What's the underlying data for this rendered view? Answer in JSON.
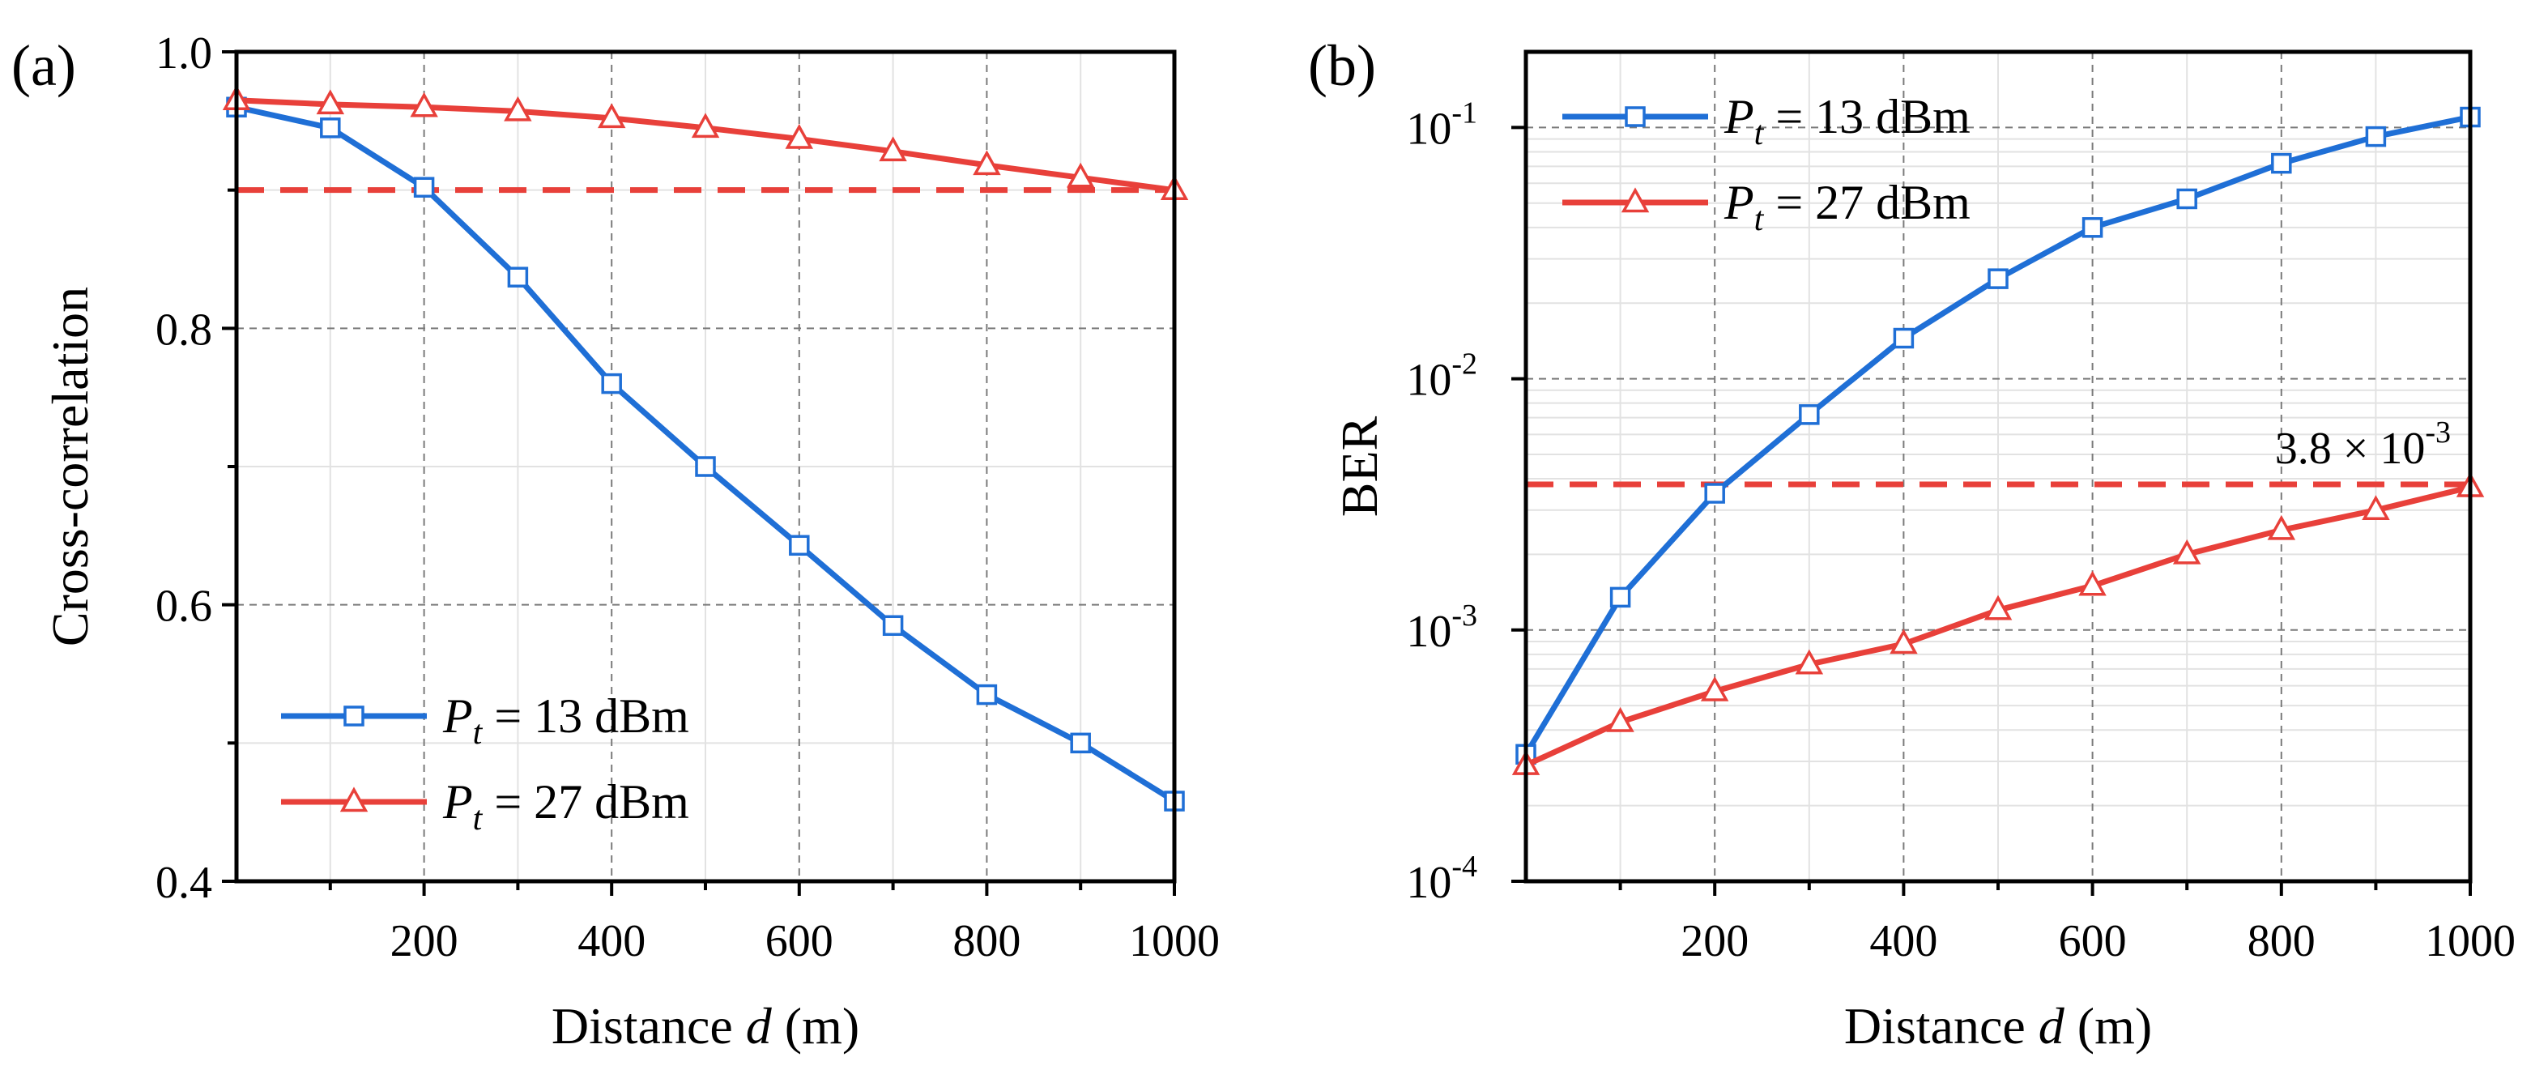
{
  "chart_data": [
    {
      "type": "line",
      "panel_label": "(a)",
      "xlabel_prefix": "Distance ",
      "xlabel_var": "d",
      "xlabel_suffix": " (m)",
      "ylabel": "Cross-correlation",
      "xlim": [
        0,
        1000
      ],
      "ylim": [
        0.4,
        1.0
      ],
      "xticks": [
        200,
        400,
        600,
        800,
        1000
      ],
      "xtick_labels": [
        "200",
        "400",
        "600",
        "800",
        "1000"
      ],
      "yticks": [
        0.4,
        0.6,
        0.8,
        1.0
      ],
      "ytick_labels": [
        "0.4",
        "0.6",
        "0.8",
        "1.0"
      ],
      "yscale": "linear",
      "grid": true,
      "legend_position": "bottom-left",
      "x": [
        0,
        100,
        200,
        300,
        400,
        500,
        600,
        700,
        800,
        900,
        1000
      ],
      "series": [
        {
          "name_var": "P",
          "name_sub": "t",
          "name_rest": " = 13 dBm",
          "color": "#1f6fd6",
          "marker": "square",
          "values": [
            0.96,
            0.945,
            0.902,
            0.837,
            0.76,
            0.7,
            0.643,
            0.585,
            0.535,
            0.5,
            0.458
          ]
        },
        {
          "name_var": "P",
          "name_sub": "t",
          "name_rest": " = 27 dBm",
          "color": "#e8403a",
          "marker": "triangle",
          "values": [
            0.965,
            0.962,
            0.96,
            0.957,
            0.952,
            0.945,
            0.937,
            0.928,
            0.918,
            0.909,
            0.9
          ]
        }
      ],
      "reference_line": {
        "y": 0.9,
        "color": "#e8403a",
        "style": "dashed"
      }
    },
    {
      "type": "line",
      "panel_label": "(b)",
      "xlabel_prefix": "Distance ",
      "xlabel_var": "d",
      "xlabel_suffix": " (m)",
      "ylabel": "BER",
      "xlim": [
        0,
        1000
      ],
      "ylim": [
        0.0001,
        0.2
      ],
      "xticks": [
        200,
        400,
        600,
        800,
        1000
      ],
      "xtick_labels": [
        "200",
        "400",
        "600",
        "800",
        "1000"
      ],
      "yticks": [
        0.0001,
        0.001,
        0.01,
        0.1
      ],
      "ytick_base": "10",
      "ytick_exponents": [
        "-4",
        "-3",
        "-2",
        "-1"
      ],
      "yscale": "log",
      "grid": true,
      "legend_position": "top-left",
      "x": [
        0,
        100,
        200,
        300,
        400,
        500,
        600,
        700,
        800,
        900,
        1000
      ],
      "series": [
        {
          "name_var": "P",
          "name_sub": "t",
          "name_rest": " = 13 dBm",
          "color": "#1f6fd6",
          "marker": "square",
          "values": [
            0.00032,
            0.00135,
            0.0035,
            0.0072,
            0.0145,
            0.025,
            0.04,
            0.052,
            0.072,
            0.092,
            0.11
          ]
        },
        {
          "name_var": "P",
          "name_sub": "t",
          "name_rest": " = 27 dBm",
          "color": "#e8403a",
          "marker": "triangle",
          "values": [
            0.00029,
            0.00043,
            0.00057,
            0.00073,
            0.00088,
            0.0012,
            0.0015,
            0.002,
            0.0025,
            0.003,
            0.0037
          ]
        }
      ],
      "reference_line": {
        "y": 0.0038,
        "color": "#e8403a",
        "style": "dashed"
      },
      "annotation": {
        "base": "3.8 × 10",
        "exponent": "-3"
      }
    }
  ]
}
